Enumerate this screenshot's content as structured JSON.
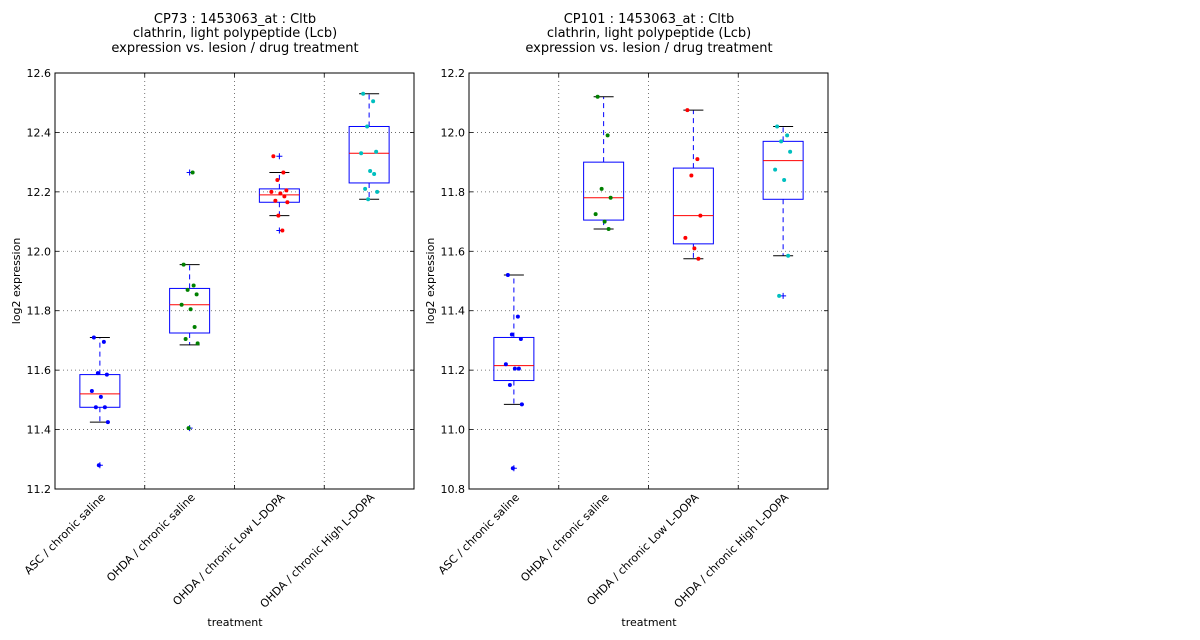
{
  "chart_data": [
    {
      "type": "box",
      "title_lines": [
        "CP73 : 1453063_at : Cltb",
        "clathrin, light polypeptide (Lcb)",
        "expression vs. lesion / drug treatment"
      ],
      "xlabel": "treatment",
      "ylabel": "log2 expression",
      "ylim": [
        11.2,
        12.6
      ],
      "yticks": [
        "11.2",
        "11.4",
        "11.6",
        "11.8",
        "12.0",
        "12.2",
        "12.4",
        "12.6"
      ],
      "grid": true,
      "categories": [
        "ASC / chronic saline",
        "OHDA / chronic saline",
        "OHDA / chronic Low L-DOPA",
        "OHDA / chronic High L-DOPA"
      ],
      "series": [
        {
          "box": {
            "whislo": 11.425,
            "q1": 11.475,
            "med": 11.52,
            "q3": 11.585,
            "whishi": 11.71
          },
          "points": [
            11.71,
            11.695,
            11.59,
            11.585,
            11.53,
            11.51,
            11.475,
            11.475,
            11.425,
            11.28
          ],
          "outliers": [
            11.28
          ]
        },
        {
          "box": {
            "whislo": 11.685,
            "q1": 11.725,
            "med": 11.82,
            "q3": 11.875,
            "whishi": 11.955
          },
          "points": [
            11.955,
            11.885,
            11.87,
            11.855,
            11.82,
            11.805,
            11.745,
            11.705,
            11.69,
            11.405,
            12.265
          ],
          "outliers": [
            11.405,
            12.265
          ]
        },
        {
          "box": {
            "whislo": 12.12,
            "q1": 12.165,
            "med": 12.19,
            "q3": 12.21,
            "whishi": 12.265
          },
          "points": [
            12.32,
            12.265,
            12.24,
            12.205,
            12.2,
            12.195,
            12.185,
            12.17,
            12.165,
            12.12,
            12.07
          ],
          "outliers": [
            12.32,
            12.07
          ]
        },
        {
          "box": {
            "whislo": 12.175,
            "q1": 12.23,
            "med": 12.33,
            "q3": 12.42,
            "whishi": 12.53
          },
          "points": [
            12.53,
            12.505,
            12.42,
            12.335,
            12.33,
            12.27,
            12.26,
            12.21,
            12.2,
            12.175
          ],
          "outliers": []
        }
      ]
    },
    {
      "type": "box",
      "title_lines": [
        "CP101 : 1453063_at : Cltb",
        "clathrin, light polypeptide (Lcb)",
        "expression vs. lesion / drug treatment"
      ],
      "xlabel": "treatment",
      "ylabel": "log2 expression",
      "ylim": [
        10.8,
        12.2
      ],
      "yticks": [
        "10.8",
        "11.0",
        "11.2",
        "11.4",
        "11.6",
        "11.8",
        "12.0",
        "12.2"
      ],
      "grid": true,
      "categories": [
        "ASC / chronic saline",
        "OHDA / chronic saline",
        "OHDA / chronic Low L-DOPA",
        "OHDA / chronic High L-DOPA"
      ],
      "series": [
        {
          "box": {
            "whislo": 11.085,
            "q1": 11.165,
            "med": 11.215,
            "q3": 11.31,
            "whishi": 11.52
          },
          "points": [
            11.52,
            11.38,
            11.32,
            11.305,
            11.22,
            11.205,
            11.205,
            11.15,
            11.085,
            10.87
          ],
          "outliers": [
            10.87
          ]
        },
        {
          "box": {
            "whislo": 11.675,
            "q1": 11.705,
            "med": 11.78,
            "q3": 11.9,
            "whishi": 12.12
          },
          "points": [
            12.12,
            11.99,
            11.81,
            11.78,
            11.725,
            11.7,
            11.675
          ],
          "outliers": []
        },
        {
          "box": {
            "whislo": 11.575,
            "q1": 11.625,
            "med": 11.72,
            "q3": 11.88,
            "whishi": 12.075
          },
          "points": [
            12.075,
            11.91,
            11.855,
            11.72,
            11.645,
            11.61,
            11.575
          ],
          "outliers": []
        },
        {
          "box": {
            "whislo": 11.585,
            "q1": 11.775,
            "med": 11.905,
            "q3": 11.97,
            "whishi": 12.02
          },
          "points": [
            12.02,
            11.99,
            11.97,
            11.935,
            11.875,
            11.84,
            11.585,
            11.45
          ],
          "outliers": [
            11.45
          ]
        }
      ]
    }
  ],
  "colors": {
    "box": "#0000ff",
    "median": "#ff0000",
    "grid": "#555555",
    "group_points": [
      "#0000ff",
      "#008000",
      "#ff0000",
      "#00bfbf"
    ]
  }
}
